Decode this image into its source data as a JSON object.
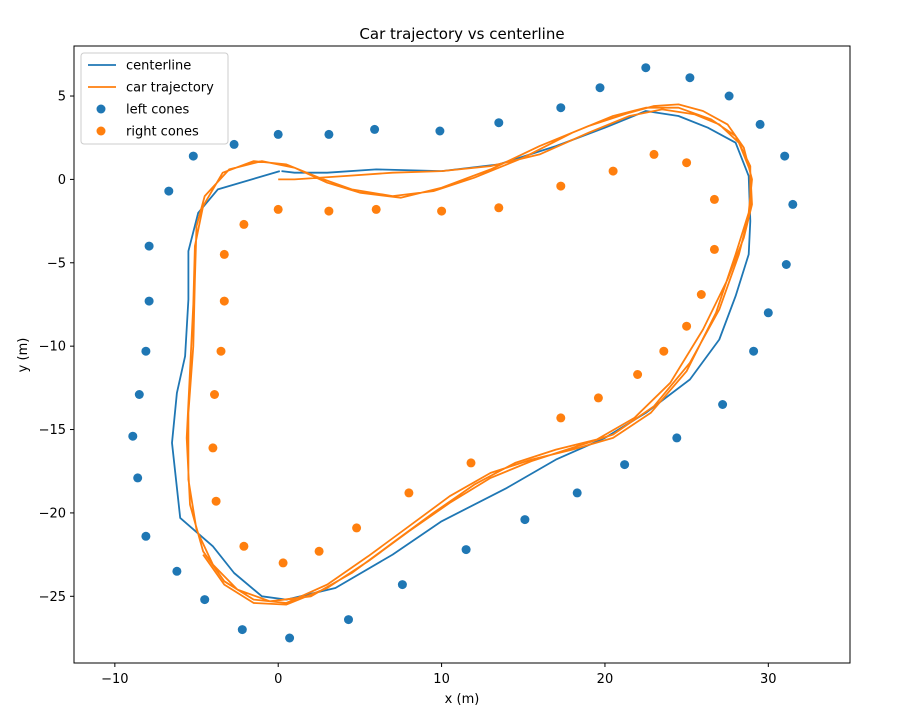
{
  "chart_data": {
    "type": "line",
    "title": "Car trajectory vs centerline",
    "xlabel": "x (m)",
    "ylabel": "y (m)",
    "xlim": [
      -12.5,
      35
    ],
    "ylim": [
      -29,
      8
    ],
    "xticks": [
      -10,
      0,
      10,
      20,
      30
    ],
    "yticks": [
      5,
      0,
      -5,
      -10,
      -15,
      -20,
      -25
    ],
    "xtick_labels": [
      "−10",
      "0",
      "10",
      "20",
      "30"
    ],
    "ytick_labels": [
      "5",
      "0",
      "−5",
      "−10",
      "−15",
      "−20",
      "−25"
    ],
    "grid": false,
    "legend_position": "top-left",
    "legend": [
      {
        "label": "centerline",
        "kind": "line",
        "color": "#1f77b4"
      },
      {
        "label": "car trajectory",
        "kind": "line",
        "color": "#ff7f0e"
      },
      {
        "label": "left cones",
        "kind": "marker",
        "color": "#1f77b4"
      },
      {
        "label": "right cones",
        "kind": "marker",
        "color": "#ff7f0e"
      }
    ],
    "series": [
      {
        "name": "centerline",
        "kind": "line",
        "color": "#1f77b4",
        "points": [
          [
            0.2,
            0.5
          ],
          [
            1,
            0.4
          ],
          [
            3,
            0.4
          ],
          [
            6,
            0.6
          ],
          [
            10,
            0.5
          ],
          [
            13.5,
            0.9
          ],
          [
            17,
            2
          ],
          [
            20,
            3.1
          ],
          [
            22.5,
            4.1
          ],
          [
            24.5,
            3.8
          ],
          [
            26.3,
            3.1
          ],
          [
            28,
            2.2
          ],
          [
            28.8,
            0.2
          ],
          [
            28.9,
            -2.5
          ],
          [
            28.8,
            -4.5
          ],
          [
            28,
            -7
          ],
          [
            27,
            -9.6
          ],
          [
            25.2,
            -12
          ],
          [
            22.5,
            -14
          ],
          [
            20,
            -15.5
          ],
          [
            17,
            -16.8
          ],
          [
            14,
            -18.5
          ],
          [
            10,
            -20.5
          ],
          [
            7,
            -22.5
          ],
          [
            3.5,
            -24.5
          ],
          [
            0.5,
            -25.2
          ],
          [
            -1,
            -25
          ],
          [
            -2.7,
            -23.6
          ],
          [
            -4,
            -22
          ],
          [
            -6,
            -20.3
          ],
          [
            -6.5,
            -15.8
          ],
          [
            -6.2,
            -12.8
          ],
          [
            -5.7,
            -10.6
          ],
          [
            -5.5,
            -7.2
          ],
          [
            -5.5,
            -4.3
          ],
          [
            -4.9,
            -2
          ],
          [
            -3.7,
            -0.6
          ],
          [
            0.1,
            0.5
          ]
        ]
      },
      {
        "name": "car trajectory",
        "kind": "line",
        "color": "#ff7f0e",
        "points": [
          [
            0,
            0
          ],
          [
            1,
            0
          ],
          [
            4,
            0.2
          ],
          [
            7,
            0.4
          ],
          [
            10,
            0.5
          ],
          [
            13,
            0.8
          ],
          [
            16,
            1.5
          ],
          [
            19,
            2.8
          ],
          [
            21.5,
            3.8
          ],
          [
            23.5,
            4.2
          ],
          [
            25.5,
            3.9
          ],
          [
            27,
            3.3
          ],
          [
            28.2,
            2.2
          ],
          [
            28.9,
            0.5
          ],
          [
            29,
            -1.5
          ],
          [
            28.5,
            -3.5
          ],
          [
            27.5,
            -6
          ],
          [
            26,
            -9
          ],
          [
            24,
            -12.2
          ],
          [
            21.8,
            -14.3
          ],
          [
            19.5,
            -15.6
          ],
          [
            17,
            -16.2
          ],
          [
            14.5,
            -17
          ],
          [
            12,
            -18.3
          ],
          [
            9.5,
            -20
          ],
          [
            7,
            -21.8
          ],
          [
            4.5,
            -23.6
          ],
          [
            2,
            -25
          ],
          [
            -0.5,
            -25.3
          ],
          [
            -2.5,
            -24.6
          ],
          [
            -4,
            -23.1
          ],
          [
            -5,
            -21
          ],
          [
            -5.5,
            -18
          ],
          [
            -5.5,
            -14
          ],
          [
            -5.2,
            -10
          ],
          [
            -5.1,
            -6
          ],
          [
            -5,
            -2.8
          ],
          [
            -4.5,
            -1
          ],
          [
            -3,
            0.6
          ],
          [
            -1,
            1.1
          ],
          [
            1,
            0.7
          ],
          [
            3,
            -0.2
          ],
          [
            5,
            -0.8
          ],
          [
            7.5,
            -1.1
          ],
          [
            10,
            -0.5
          ],
          [
            13,
            0.6
          ],
          [
            16,
            2
          ],
          [
            19,
            3.2
          ],
          [
            21.5,
            4
          ],
          [
            23,
            4.4
          ],
          [
            24.5,
            4.5
          ],
          [
            26,
            4.1
          ],
          [
            27.5,
            3.3
          ],
          [
            28.5,
            1.9
          ],
          [
            29,
            0
          ],
          [
            28.8,
            -2
          ],
          [
            28,
            -4.5
          ],
          [
            26.8,
            -8
          ],
          [
            25,
            -11.5
          ],
          [
            22.8,
            -14
          ],
          [
            20.5,
            -15.5
          ],
          [
            18,
            -16.2
          ],
          [
            15.5,
            -16.8
          ],
          [
            13,
            -17.6
          ],
          [
            10.5,
            -19
          ],
          [
            8,
            -20.8
          ],
          [
            5.5,
            -22.6
          ],
          [
            3,
            -24.3
          ],
          [
            0.5,
            -25.4
          ],
          [
            -1.5,
            -25.2
          ],
          [
            -3.3,
            -24.1
          ],
          [
            -4.6,
            -22.3
          ],
          [
            -5.4,
            -19.5
          ],
          [
            -5.6,
            -15.5
          ],
          [
            -5.4,
            -11.5
          ],
          [
            -5.2,
            -7.5
          ],
          [
            -5.1,
            -4
          ],
          [
            -4.6,
            -1.6
          ],
          [
            -3.4,
            0.4
          ],
          [
            -1.5,
            1.1
          ],
          [
            0.5,
            0.9
          ],
          [
            2.5,
            0.1
          ],
          [
            4.5,
            -0.6
          ],
          [
            7,
            -1
          ],
          [
            9.5,
            -0.7
          ],
          [
            12,
            0.1
          ],
          [
            15,
            1.3
          ],
          [
            18,
            2.8
          ],
          [
            20.5,
            3.8
          ],
          [
            22.5,
            4.3
          ],
          [
            24.5,
            4.3
          ],
          [
            26.5,
            3.6
          ],
          [
            28,
            2.6
          ],
          [
            28.9,
            0.8
          ],
          [
            28.9,
            -1.8
          ],
          [
            28.2,
            -4.5
          ],
          [
            27,
            -7.8
          ],
          [
            25.2,
            -11
          ],
          [
            23,
            -13.6
          ],
          [
            20.5,
            -15.3
          ],
          [
            18,
            -16.1
          ],
          [
            15.5,
            -16.9
          ],
          [
            13,
            -17.9
          ],
          [
            10.5,
            -19.4
          ],
          [
            8,
            -21.1
          ],
          [
            5.5,
            -22.9
          ],
          [
            3,
            -24.5
          ],
          [
            0.5,
            -25.5
          ],
          [
            -1.5,
            -25.4
          ],
          [
            -3.3,
            -24.3
          ],
          [
            -4.6,
            -22.5
          ]
        ]
      },
      {
        "name": "left cones",
        "kind": "scatter",
        "color": "#1f77b4",
        "points": [
          [
            0,
            2.7
          ],
          [
            3.1,
            2.7
          ],
          [
            5.9,
            3
          ],
          [
            9.9,
            2.9
          ],
          [
            13.5,
            3.4
          ],
          [
            17.3,
            4.3
          ],
          [
            19.7,
            5.5
          ],
          [
            22.5,
            6.7
          ],
          [
            25.2,
            6.1
          ],
          [
            27.6,
            5
          ],
          [
            29.5,
            3.3
          ],
          [
            31,
            1.4
          ],
          [
            31.5,
            -1.5
          ],
          [
            31.1,
            -5.1
          ],
          [
            30,
            -8
          ],
          [
            29.1,
            -10.3
          ],
          [
            27.2,
            -13.5
          ],
          [
            24.4,
            -15.5
          ],
          [
            21.2,
            -17.1
          ],
          [
            18.3,
            -18.8
          ],
          [
            15.1,
            -20.4
          ],
          [
            11.5,
            -22.2
          ],
          [
            7.6,
            -24.3
          ],
          [
            4.3,
            -26.4
          ],
          [
            0.7,
            -27.5
          ],
          [
            -2.2,
            -27
          ],
          [
            -4.5,
            -25.2
          ],
          [
            -6.2,
            -23.5
          ],
          [
            -8.1,
            -21.4
          ],
          [
            -8.6,
            -17.9
          ],
          [
            -8.9,
            -15.4
          ],
          [
            -8.5,
            -12.9
          ],
          [
            -8.1,
            -10.3
          ],
          [
            -7.9,
            -7.3
          ],
          [
            -7.9,
            -4
          ],
          [
            -6.7,
            -0.7
          ],
          [
            -5.2,
            1.4
          ],
          [
            -2.7,
            2.1
          ]
        ]
      },
      {
        "name": "right cones",
        "kind": "scatter",
        "color": "#ff7f0e",
        "points": [
          [
            0,
            -1.8
          ],
          [
            3.1,
            -1.9
          ],
          [
            6,
            -1.8
          ],
          [
            10,
            -1.9
          ],
          [
            13.5,
            -1.7
          ],
          [
            17.3,
            -0.4
          ],
          [
            20.5,
            0.5
          ],
          [
            23,
            1.5
          ],
          [
            25,
            1
          ],
          [
            26.7,
            -1.2
          ],
          [
            26.7,
            -4.2
          ],
          [
            25.9,
            -6.9
          ],
          [
            25,
            -8.8
          ],
          [
            23.6,
            -10.3
          ],
          [
            22,
            -11.7
          ],
          [
            19.6,
            -13.1
          ],
          [
            17.3,
            -14.3
          ],
          [
            11.8,
            -17
          ],
          [
            8,
            -18.8
          ],
          [
            4.8,
            -20.9
          ],
          [
            2.5,
            -22.3
          ],
          [
            0.3,
            -23
          ],
          [
            -2.1,
            -22
          ],
          [
            -3.8,
            -19.3
          ],
          [
            -4,
            -16.1
          ],
          [
            -3.9,
            -12.9
          ],
          [
            -3.5,
            -10.3
          ],
          [
            -3.3,
            -7.3
          ],
          [
            -3.3,
            -4.5
          ],
          [
            -2.1,
            -2.7
          ]
        ]
      }
    ]
  }
}
